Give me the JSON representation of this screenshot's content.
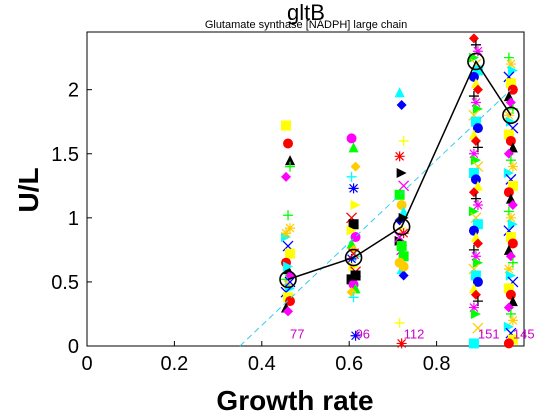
{
  "chart_data": {
    "type": "scatter",
    "title": "gltB",
    "subtitle": "Glutamate synthase [NADPH] large chain",
    "xlabel": "Growth rate",
    "ylabel": "U/L",
    "xlim": [
      0,
      1.0
    ],
    "ylim": [
      0,
      2.45
    ],
    "xticks": [
      "0",
      "0.2",
      "0.4",
      "0.6",
      "0.8"
    ],
    "yticks": [
      "0",
      "0.5",
      "1",
      "1.5",
      "2"
    ],
    "grid": false,
    "legend": "none",
    "colors": {
      "mean_line": "#000000",
      "fit_line": "#33ccee",
      "count_label": "#cc00cc",
      "palette": [
        "#ffff00",
        "#ff00ff",
        "#00ffff",
        "#ff0000",
        "#00ff00",
        "#0000ff",
        "#000000",
        "#ffcc00"
      ]
    },
    "mean_series": {
      "x": [
        0.46,
        0.61,
        0.72,
        0.89,
        0.97
      ],
      "y": [
        0.52,
        0.69,
        0.93,
        2.22,
        1.8
      ]
    },
    "fit_line": {
      "x": [
        0.35,
        0.97
      ],
      "y": [
        0.0,
        2.0
      ]
    },
    "count_labels": [
      {
        "x": 0.46,
        "text": "77"
      },
      {
        "x": 0.61,
        "text": "96"
      },
      {
        "x": 0.72,
        "text": "112"
      },
      {
        "x": 0.89,
        "text": "151"
      },
      {
        "x": 0.97,
        "text": "145"
      }
    ],
    "groups": [
      {
        "x": 0.46,
        "y": [
          1.72,
          1.58,
          1.45,
          1.32,
          1.02,
          0.92,
          0.85,
          0.78,
          0.72,
          0.65,
          0.6,
          0.55,
          0.52,
          0.48,
          0.45,
          0.42,
          0.38,
          0.35,
          0.3,
          0.27,
          1.4,
          0.88,
          0.62,
          0.5
        ]
      },
      {
        "x": 0.61,
        "y": [
          1.62,
          1.55,
          1.4,
          1.32,
          1.23,
          1.1,
          1.0,
          0.95,
          0.85,
          0.8,
          0.75,
          0.7,
          0.68,
          0.62,
          0.58,
          0.52,
          0.48,
          0.45,
          0.42,
          0.38,
          0.08,
          0.9,
          0.72,
          0.55
        ]
      },
      {
        "x": 0.72,
        "y": [
          1.98,
          1.88,
          1.6,
          1.48,
          1.35,
          1.25,
          1.18,
          1.1,
          1.05,
          0.98,
          0.92,
          0.88,
          0.82,
          0.75,
          0.7,
          0.65,
          0.6,
          0.55,
          0.18,
          0.02,
          1.0,
          0.85,
          0.78,
          0.62
        ]
      },
      {
        "x": 0.89,
        "y": [
          2.4,
          2.35,
          2.3,
          2.25,
          2.2,
          2.15,
          2.1,
          2.05,
          2.0,
          1.95,
          1.9,
          1.85,
          1.8,
          1.75,
          1.7,
          1.65,
          1.6,
          1.55,
          1.5,
          1.45,
          1.4,
          1.35,
          1.3,
          1.25,
          1.2,
          1.15,
          1.1,
          1.05,
          1.0,
          0.95,
          0.9,
          0.85,
          0.8,
          0.75,
          0.7,
          0.65,
          0.6,
          0.55,
          0.5,
          0.45,
          0.4,
          0.35,
          0.3,
          0.25,
          0.14,
          0.02
        ]
      },
      {
        "x": 0.97,
        "y": [
          2.25,
          2.2,
          2.15,
          2.1,
          2.05,
          2.0,
          1.95,
          1.9,
          1.85,
          1.8,
          1.75,
          1.7,
          1.65,
          1.6,
          1.55,
          1.5,
          1.45,
          1.4,
          1.35,
          1.3,
          1.25,
          1.2,
          1.15,
          1.1,
          1.05,
          1.0,
          0.95,
          0.9,
          0.85,
          0.8,
          0.75,
          0.7,
          0.65,
          0.6,
          0.55,
          0.5,
          0.45,
          0.4,
          0.35,
          0.3,
          0.25,
          0.2,
          0.15,
          0.1,
          0.05,
          0.02
        ]
      }
    ]
  }
}
